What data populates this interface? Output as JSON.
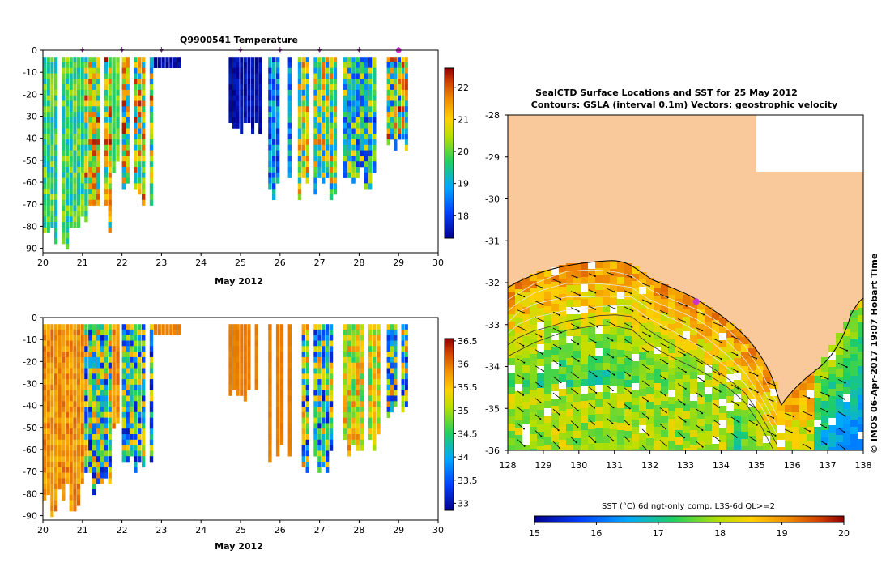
{
  "chart_data": [
    {
      "type": "heatmap",
      "title": "Q9900541  Temperature",
      "xlabel": "May 2012",
      "ylabel": "",
      "xlim": [
        20,
        30
      ],
      "ylim": [
        -92,
        0
      ],
      "x_ticks": [
        "20",
        "21",
        "22",
        "23",
        "24",
        "25",
        "26",
        "27",
        "28",
        "29",
        "30"
      ],
      "y_ticks": [
        "0",
        "-10",
        "-20",
        "-30",
        "-40",
        "-50",
        "-60",
        "-70",
        "-80",
        "-90"
      ],
      "colorbar": {
        "min": 17.3,
        "max": 22.6,
        "ticks": [
          "18",
          "19",
          "20",
          "21",
          "22"
        ]
      },
      "profile_markers_x": [
        21,
        22,
        23,
        25,
        26,
        27,
        28,
        29
      ],
      "highlight_marker_x": 29,
      "profile_groups": [
        {
          "x_start": 20.0,
          "x_end": 21.05,
          "depth_min": -91,
          "value_range": [
            19.0,
            20.5
          ]
        },
        {
          "x_start": 21.05,
          "x_end": 21.75,
          "depth_min": -82,
          "value_range": [
            19.0,
            22.5
          ]
        },
        {
          "x_start": 21.75,
          "x_end": 21.95,
          "depth_min": -55,
          "value_range": [
            19.5,
            20.5
          ]
        },
        {
          "x_start": 22.0,
          "x_end": 22.8,
          "depth_min": -71,
          "value_range": [
            18.5,
            22.5
          ]
        },
        {
          "x_start": 22.8,
          "x_end": 23.5,
          "depth_min": -7,
          "value_range": [
            17.3,
            17.6
          ]
        },
        {
          "x_start": 24.7,
          "x_end": 25.55,
          "depth_min": -37,
          "value_range": [
            17.3,
            17.7
          ]
        },
        {
          "x_start": 25.7,
          "x_end": 26.3,
          "depth_min": -67,
          "value_range": [
            17.7,
            19.5
          ]
        },
        {
          "x_start": 26.45,
          "x_end": 27.45,
          "depth_min": -69,
          "value_range": [
            18.5,
            22.0
          ]
        },
        {
          "x_start": 27.6,
          "x_end": 28.55,
          "depth_min": -63,
          "value_range": [
            17.8,
            21.0
          ]
        },
        {
          "x_start": 28.7,
          "x_end": 29.25,
          "depth_min": -46,
          "value_range": [
            18.0,
            22.5
          ]
        }
      ]
    },
    {
      "type": "heatmap",
      "title": "",
      "xlabel": "May 2012",
      "ylabel": "",
      "xlim": [
        20,
        30
      ],
      "ylim": [
        -92,
        0
      ],
      "x_ticks": [
        "20",
        "21",
        "22",
        "23",
        "24",
        "25",
        "26",
        "27",
        "28",
        "29",
        "30"
      ],
      "y_ticks": [
        "0",
        "-10",
        "-20",
        "-30",
        "-40",
        "-50",
        "-60",
        "-70",
        "-80",
        "-90"
      ],
      "colorbar": {
        "min": 32.85,
        "max": 36.55,
        "ticks": [
          "33",
          "33.5",
          "34",
          "34.5",
          "35",
          "35.5",
          "36",
          "36.5"
        ]
      },
      "profile_groups": [
        {
          "x_start": 20.0,
          "x_end": 21.05,
          "depth_min": -91,
          "value_range": [
            35.6,
            36.1
          ]
        },
        {
          "x_start": 21.05,
          "x_end": 21.75,
          "depth_min": -82,
          "value_range": [
            33.0,
            36.0
          ]
        },
        {
          "x_start": 21.75,
          "x_end": 21.95,
          "depth_min": -55,
          "value_range": [
            35.6,
            36.1
          ]
        },
        {
          "x_start": 22.0,
          "x_end": 22.8,
          "depth_min": -71,
          "value_range": [
            33.0,
            35.8
          ]
        },
        {
          "x_start": 22.8,
          "x_end": 23.5,
          "depth_min": -7,
          "value_range": [
            35.9,
            36.0
          ]
        },
        {
          "x_start": 24.7,
          "x_end": 25.55,
          "depth_min": -37,
          "value_range": [
            35.9,
            36.0
          ]
        },
        {
          "x_start": 25.7,
          "x_end": 26.3,
          "depth_min": -67,
          "value_range": [
            35.9,
            36.0
          ]
        },
        {
          "x_start": 26.45,
          "x_end": 27.45,
          "depth_min": -69,
          "value_range": [
            33.0,
            36.0
          ]
        },
        {
          "x_start": 27.6,
          "x_end": 28.55,
          "depth_min": -63,
          "value_range": [
            34.5,
            36.0
          ]
        },
        {
          "x_start": 28.7,
          "x_end": 29.25,
          "depth_min": -46,
          "value_range": [
            33.0,
            36.0
          ]
        }
      ]
    },
    {
      "type": "heatmap",
      "title": "SealCTD Surface Locations and SST for 25 May 2012",
      "subtitle": "Contours: GSLA (interval 0.1m) Vectors: geostrophic velocity",
      "xlabel": "",
      "ylabel": "",
      "xlim": [
        128,
        138
      ],
      "ylim": [
        -36,
        -28
      ],
      "x_ticks": [
        "128",
        "129",
        "130",
        "131",
        "132",
        "133",
        "134",
        "135",
        "136",
        "137",
        "138"
      ],
      "y_ticks": [
        "-28",
        "-29",
        "-30",
        "-31",
        "-32",
        "-33",
        "-34",
        "-35",
        "-36"
      ],
      "colorbar": {
        "label": "SST (°C) 6d ngt-only comp, L3S-6d QL>=2",
        "min": 15,
        "max": 20,
        "ticks": [
          "15",
          "16",
          "17",
          "18",
          "19",
          "20"
        ]
      },
      "seal_location": {
        "lon": 133.3,
        "lat": -32.45
      },
      "land_color": "#f9c99c",
      "sst_range": [
        16.2,
        19.4
      ],
      "grid": false
    }
  ],
  "credit": "© IMOS 06-Apr-2017 19:07 Hobart Time",
  "colors": {
    "land": "#f9c99c",
    "marker": "#7a2a8a",
    "seal_marker": "#cc33cc",
    "missing": "#ffffff"
  }
}
